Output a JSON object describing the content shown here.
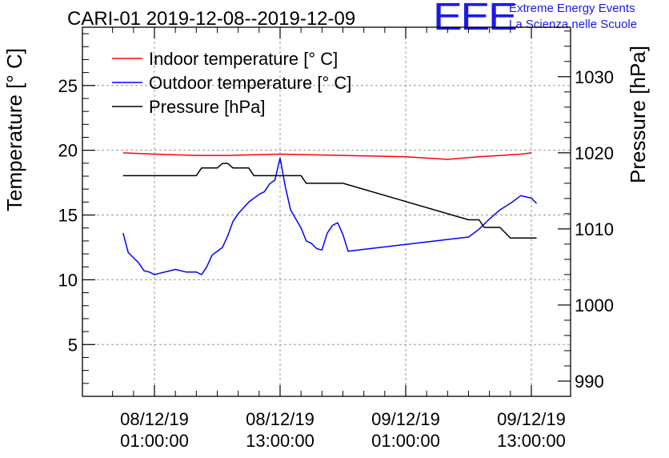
{
  "chart_data": {
    "type": "line",
    "title": "CARI-01 2019-12-08--2019-12-09",
    "ylabel": "Temperature [° C]",
    "y2label": "Pressure [hPa]",
    "ylim": [
      1,
      29.5
    ],
    "y2lim": [
      988,
      1036.5
    ],
    "yticks": [
      5,
      10,
      15,
      20,
      25
    ],
    "y2ticks": [
      990,
      1000,
      1010,
      1020,
      1030
    ],
    "xticks": [
      {
        "date": "08/12/19",
        "time": "01:00:00"
      },
      {
        "date": "08/12/19",
        "time": "13:00:00"
      },
      {
        "date": "09/12/19",
        "time": "01:00:00"
      },
      {
        "date": "09/12/19",
        "time": "13:00:00"
      }
    ],
    "grid": true,
    "legend_position": "top-left",
    "series": [
      {
        "name": "Indoor temperature [° C]",
        "color": "#ff0000",
        "axis": "left",
        "points": [
          [
            "2019-12-07 22:00",
            19.8
          ],
          [
            "2019-12-08 01:00",
            19.7
          ],
          [
            "2019-12-08 05:00",
            19.6
          ],
          [
            "2019-12-08 08:00",
            19.6
          ],
          [
            "2019-12-08 13:00",
            19.7
          ],
          [
            "2019-12-08 19:00",
            19.6
          ],
          [
            "2019-12-09 01:00",
            19.5
          ],
          [
            "2019-12-09 05:00",
            19.3
          ],
          [
            "2019-12-09 08:00",
            19.5
          ],
          [
            "2019-12-09 12:00",
            19.7
          ],
          [
            "2019-12-09 13:00",
            19.8
          ]
        ]
      },
      {
        "name": "Outdoor temperature [° C]",
        "color": "#0000ff",
        "axis": "left",
        "points": [
          [
            "2019-12-07 22:00",
            13.6
          ],
          [
            "2019-12-07 22:30",
            12.1
          ],
          [
            "2019-12-07 23:30",
            11.3
          ],
          [
            "2019-12-08 00:00",
            10.7
          ],
          [
            "2019-12-08 00:30",
            10.6
          ],
          [
            "2019-12-08 01:00",
            10.4
          ],
          [
            "2019-12-08 01:30",
            10.5
          ],
          [
            "2019-12-08 02:30",
            10.7
          ],
          [
            "2019-12-08 03:00",
            10.8
          ],
          [
            "2019-12-08 04:00",
            10.6
          ],
          [
            "2019-12-08 05:00",
            10.6
          ],
          [
            "2019-12-08 05:30",
            10.4
          ],
          [
            "2019-12-08 06:00",
            11.0
          ],
          [
            "2019-12-08 06:30",
            11.9
          ],
          [
            "2019-12-08 07:30",
            12.5
          ],
          [
            "2019-12-08 08:00",
            13.4
          ],
          [
            "2019-12-08 08:30",
            14.5
          ],
          [
            "2019-12-08 09:00",
            15.1
          ],
          [
            "2019-12-08 10:00",
            16.0
          ],
          [
            "2019-12-08 11:00",
            16.6
          ],
          [
            "2019-12-08 11:30",
            16.8
          ],
          [
            "2019-12-08 12:00",
            17.4
          ],
          [
            "2019-12-08 12:30",
            17.7
          ],
          [
            "2019-12-08 13:00",
            19.4
          ],
          [
            "2019-12-08 13:30",
            17.2
          ],
          [
            "2019-12-08 14:00",
            15.4
          ],
          [
            "2019-12-08 15:00",
            14.0
          ],
          [
            "2019-12-08 15:30",
            13.0
          ],
          [
            "2019-12-08 16:00",
            12.8
          ],
          [
            "2019-12-08 16:30",
            12.4
          ],
          [
            "2019-12-08 17:00",
            12.3
          ],
          [
            "2019-12-08 17:30",
            13.6
          ],
          [
            "2019-12-08 18:00",
            14.2
          ],
          [
            "2019-12-08 18:30",
            14.4
          ],
          [
            "2019-12-08 19:00",
            13.5
          ],
          [
            "2019-12-08 19:30",
            12.2
          ],
          [
            "2019-12-09 07:00",
            13.3
          ],
          [
            "2019-12-09 08:00",
            13.9
          ],
          [
            "2019-12-09 09:00",
            14.7
          ],
          [
            "2019-12-09 10:00",
            15.4
          ],
          [
            "2019-12-09 11:00",
            15.9
          ],
          [
            "2019-12-09 12:00",
            16.5
          ],
          [
            "2019-12-09 13:00",
            16.3
          ],
          [
            "2019-12-09 13:30",
            15.9
          ]
        ]
      },
      {
        "name": "Pressure [hPa]",
        "color": "#000000",
        "axis": "right",
        "points": [
          [
            "2019-12-07 22:00",
            1017
          ],
          [
            "2019-12-08 05:00",
            1017
          ],
          [
            "2019-12-08 05:30",
            1018
          ],
          [
            "2019-12-08 07:00",
            1018
          ],
          [
            "2019-12-08 07:30",
            1018.6
          ],
          [
            "2019-12-08 08:00",
            1018.6
          ],
          [
            "2019-12-08 08:30",
            1018
          ],
          [
            "2019-12-08 10:00",
            1018
          ],
          [
            "2019-12-08 10:30",
            1017
          ],
          [
            "2019-12-08 13:30",
            1017
          ],
          [
            "2019-12-08 15:00",
            1017
          ],
          [
            "2019-12-08 15:30",
            1016
          ],
          [
            "2019-12-08 19:00",
            1016
          ],
          [
            "2019-12-09 07:00",
            1011.2
          ],
          [
            "2019-12-09 08:00",
            1011.2
          ],
          [
            "2019-12-09 08:30",
            1010.2
          ],
          [
            "2019-12-09 10:00",
            1010.2
          ],
          [
            "2019-12-09 11:00",
            1008.8
          ],
          [
            "2019-12-09 12:00",
            1008.8
          ],
          [
            "2019-12-09 13:30",
            1008.8
          ]
        ]
      }
    ]
  },
  "logo": {
    "mark": "EEE",
    "line1": "Extreme Energy Events",
    "line2": "La Scienza nelle Scuole"
  }
}
